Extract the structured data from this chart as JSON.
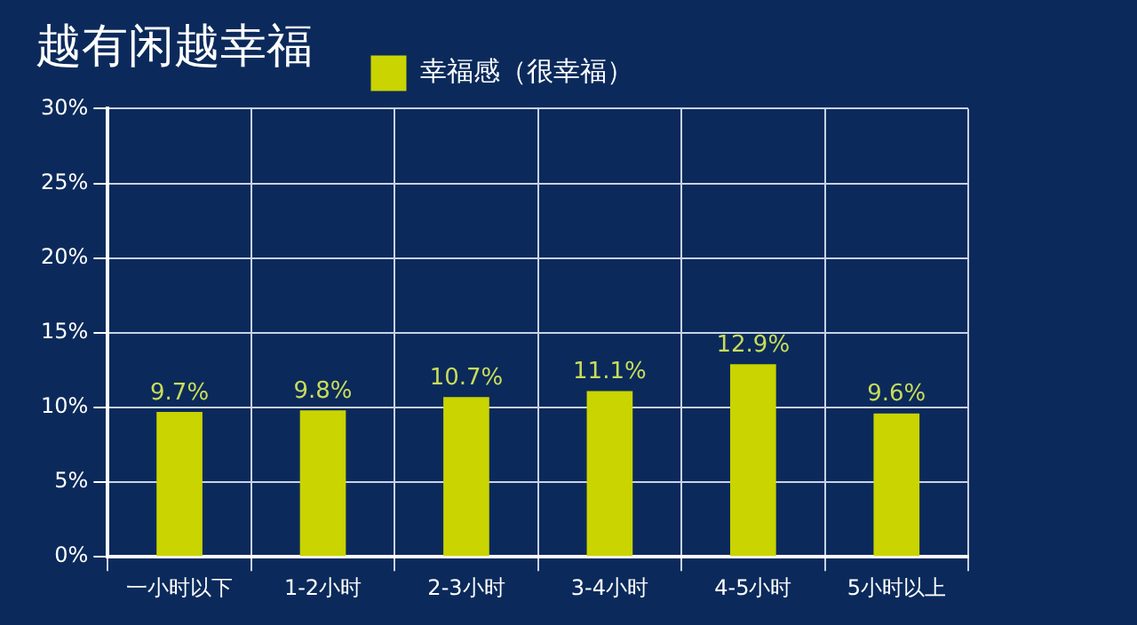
{
  "chart_data": {
    "type": "bar",
    "title": "越有闲越幸福",
    "categories": [
      "一小时以下",
      "1-2小时",
      "2-3小时",
      "3-4小时",
      "4-5小时",
      "5小时以上"
    ],
    "series": [
      {
        "name": "幸福感（很幸福）",
        "color": "#c9d400",
        "values": [
          9.7,
          9.8,
          10.7,
          11.1,
          12.9,
          9.6
        ]
      }
    ],
    "value_labels": [
      "9.7%",
      "9.8%",
      "10.7%",
      "11.1%",
      "12.9%",
      "9.6%"
    ],
    "ylim": [
      0,
      30
    ],
    "yticks": [
      {
        "value": 0,
        "label": "0%"
      },
      {
        "value": 5,
        "label": "5%"
      },
      {
        "value": 10,
        "label": "10%"
      },
      {
        "value": 15,
        "label": "15%"
      },
      {
        "value": 20,
        "label": "20%"
      },
      {
        "value": 25,
        "label": "25%"
      },
      {
        "value": 30,
        "label": "30%"
      }
    ],
    "grid": true,
    "legend": "top"
  }
}
